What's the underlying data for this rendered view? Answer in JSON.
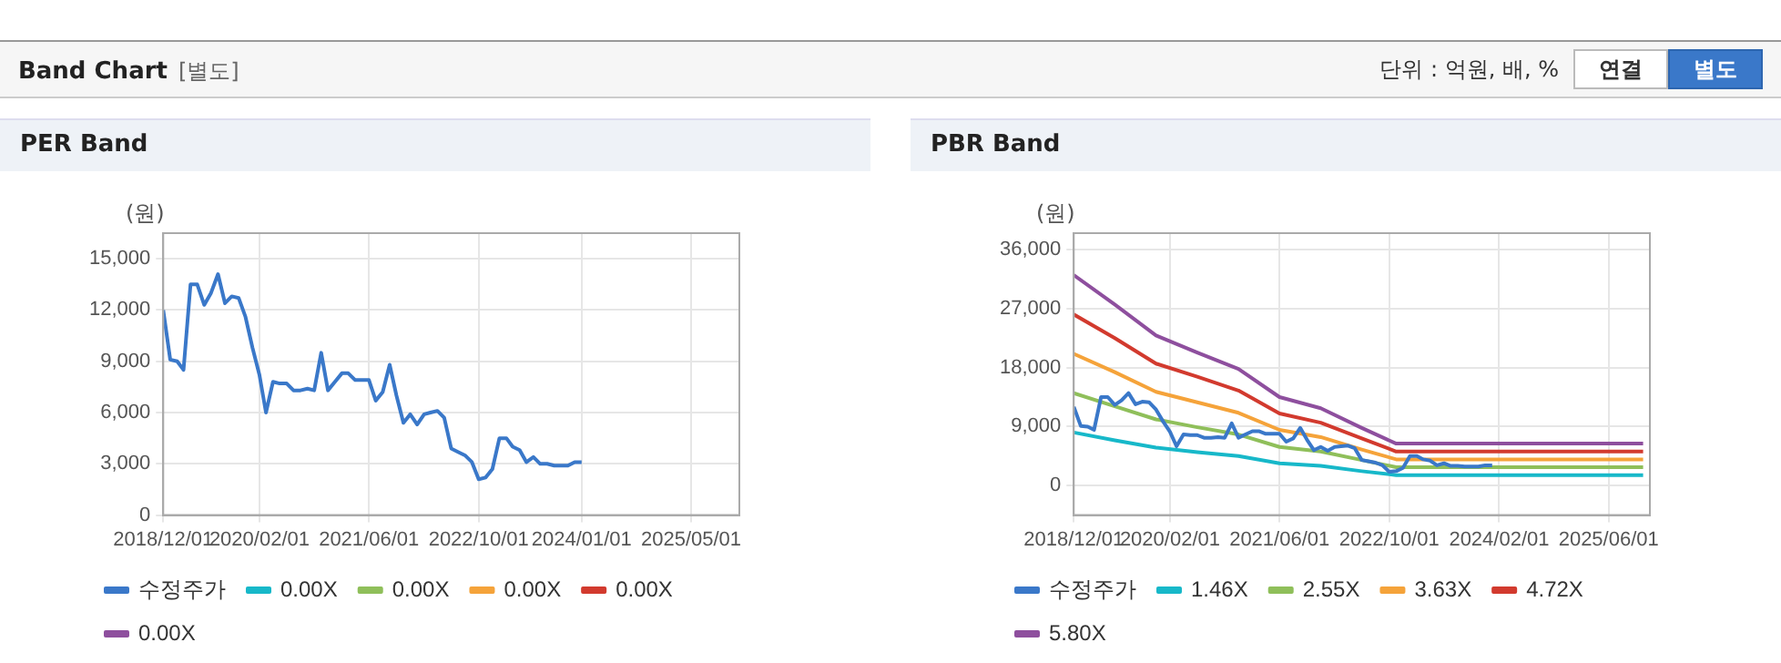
{
  "chart_data": [
    {
      "type": "other",
      "title": "Band Chart",
      "subtitle": "[별도]",
      "annotations": [
        "단위 : 억원, 배, %",
        "연결",
        "별도"
      ]
    },
    {
      "type": "line",
      "title": "PER Band",
      "ylabel": "(원)",
      "grid": true,
      "legend": "bottom",
      "marker": "none",
      "line_style": "solid",
      "x": [
        "2018-12",
        "2019-01",
        "2019-02",
        "2019-03",
        "2019-04",
        "2019-05",
        "2019-06",
        "2019-07",
        "2019-08",
        "2019-09",
        "2019-10",
        "2019-11",
        "2019-12",
        "2020-01",
        "2020-02",
        "2020-03",
        "2020-04",
        "2020-05",
        "2020-06",
        "2020-07",
        "2020-08",
        "2020-09",
        "2020-10",
        "2020-11",
        "2020-12",
        "2021-01",
        "2021-02",
        "2021-03",
        "2021-04",
        "2021-05",
        "2021-06",
        "2021-07",
        "2021-08",
        "2021-09",
        "2021-10",
        "2021-11",
        "2021-12",
        "2022-01",
        "2022-02",
        "2022-03",
        "2022-04",
        "2022-05",
        "2022-06",
        "2022-07",
        "2022-08",
        "2022-09",
        "2022-10",
        "2022-11",
        "2022-12",
        "2023-01",
        "2023-02",
        "2023-03",
        "2023-04",
        "2023-05",
        "2023-06",
        "2023-07",
        "2023-08",
        "2023-09",
        "2023-10",
        "2023-11",
        "2023-12",
        "2024-01"
      ],
      "xlim": [
        "2018-12-01",
        "2025-12-01"
      ],
      "xticks": [
        {
          "value": "2018-12-01",
          "label": "2018/12/01"
        },
        {
          "value": "2020-02-01",
          "label": "2020/02/01"
        },
        {
          "value": "2021-06-01",
          "label": "2021/06/01"
        },
        {
          "value": "2022-10-01",
          "label": "2022/10/01"
        },
        {
          "value": "2024-01-01",
          "label": "2024/01/01"
        },
        {
          "value": "2025-05-01",
          "label": "2025/05/01"
        }
      ],
      "ylim": [
        0,
        16500
      ],
      "yticks": [
        0,
        {
          "value": 3000,
          "label": "3,000"
        },
        {
          "value": 6000,
          "label": "6,000"
        },
        {
          "value": 9000,
          "label": "9,000"
        },
        {
          "value": 12000,
          "label": "12,000"
        },
        {
          "value": 15000,
          "label": "15,000"
        }
      ],
      "series": [
        {
          "name": "수정주가",
          "color": "#3a78c9",
          "values": [
            12000,
            9100,
            9000,
            8500,
            13500,
            13500,
            12300,
            13000,
            14100,
            12400,
            12800,
            12700,
            11600,
            9800,
            8200,
            6000,
            7800,
            7700,
            7700,
            7300,
            7300,
            7400,
            7300,
            9500,
            7300,
            7800,
            8300,
            8300,
            7900,
            7900,
            7900,
            6700,
            7200,
            8800,
            7000,
            5400,
            5900,
            5300,
            5900,
            6000,
            6100,
            5700,
            3900,
            3700,
            3500,
            3100,
            2100,
            2200,
            2700,
            4500,
            4500,
            4000,
            3800,
            3100,
            3400,
            3000,
            3000,
            2900,
            2900,
            2900,
            3100,
            3100
          ]
        },
        {
          "name": "0.00X",
          "color": "#17b8c9",
          "values": [
            null,
            null,
            null,
            null,
            null,
            null,
            null,
            null,
            null,
            null,
            null,
            null,
            null,
            null,
            null,
            null,
            null,
            null,
            null,
            null,
            null,
            null,
            null,
            null,
            null,
            null,
            null,
            null,
            null,
            null,
            null,
            null,
            null,
            null,
            null,
            null,
            null,
            null,
            null,
            null,
            null,
            null,
            null,
            null,
            null,
            null,
            null,
            null,
            null,
            null,
            null,
            null,
            null,
            null,
            null,
            null,
            null,
            null,
            null,
            null,
            null,
            null
          ]
        },
        {
          "name": "0.00X",
          "color": "#8fbf5a",
          "values": [
            null,
            null,
            null,
            null,
            null,
            null,
            null,
            null,
            null,
            null,
            null,
            null,
            null,
            null,
            null,
            null,
            null,
            null,
            null,
            null,
            null,
            null,
            null,
            null,
            null,
            null,
            null,
            null,
            null,
            null,
            null,
            null,
            null,
            null,
            null,
            null,
            null,
            null,
            null,
            null,
            null,
            null,
            null,
            null,
            null,
            null,
            null,
            null,
            null,
            null,
            null,
            null,
            null,
            null,
            null,
            null,
            null,
            null,
            null,
            null,
            null,
            null
          ]
        },
        {
          "name": "0.00X",
          "color": "#f5a33a",
          "values": [
            null,
            null,
            null,
            null,
            null,
            null,
            null,
            null,
            null,
            null,
            null,
            null,
            null,
            null,
            null,
            null,
            null,
            null,
            null,
            null,
            null,
            null,
            null,
            null,
            null,
            null,
            null,
            null,
            null,
            null,
            null,
            null,
            null,
            null,
            null,
            null,
            null,
            null,
            null,
            null,
            null,
            null,
            null,
            null,
            null,
            null,
            null,
            null,
            null,
            null,
            null,
            null,
            null,
            null,
            null,
            null,
            null,
            null,
            null,
            null,
            null,
            null
          ]
        },
        {
          "name": "0.00X",
          "color": "#d23a2e",
          "values": [
            null,
            null,
            null,
            null,
            null,
            null,
            null,
            null,
            null,
            null,
            null,
            null,
            null,
            null,
            null,
            null,
            null,
            null,
            null,
            null,
            null,
            null,
            null,
            null,
            null,
            null,
            null,
            null,
            null,
            null,
            null,
            null,
            null,
            null,
            null,
            null,
            null,
            null,
            null,
            null,
            null,
            null,
            null,
            null,
            null,
            null,
            null,
            null,
            null,
            null,
            null,
            null,
            null,
            null,
            null,
            null,
            null,
            null,
            null,
            null,
            null,
            null
          ]
        },
        {
          "name": "0.00X",
          "color": "#8e4f9e",
          "values": [
            null,
            null,
            null,
            null,
            null,
            null,
            null,
            null,
            null,
            null,
            null,
            null,
            null,
            null,
            null,
            null,
            null,
            null,
            null,
            null,
            null,
            null,
            null,
            null,
            null,
            null,
            null,
            null,
            null,
            null,
            null,
            null,
            null,
            null,
            null,
            null,
            null,
            null,
            null,
            null,
            null,
            null,
            null,
            null,
            null,
            null,
            null,
            null,
            null,
            null,
            null,
            null,
            null,
            null,
            null,
            null,
            null,
            null,
            null,
            null,
            null,
            null
          ]
        }
      ]
    },
    {
      "type": "line",
      "title": "PBR Band",
      "ylabel": "(원)",
      "grid": true,
      "legend": "bottom",
      "marker": "none",
      "line_style": "solid",
      "x": [
        "2018-12",
        "2019-01",
        "2019-02",
        "2019-03",
        "2019-04",
        "2019-05",
        "2019-06",
        "2019-07",
        "2019-08",
        "2019-09",
        "2019-10",
        "2019-11",
        "2019-12",
        "2020-01",
        "2020-02",
        "2020-03",
        "2020-04",
        "2020-05",
        "2020-06",
        "2020-07",
        "2020-08",
        "2020-09",
        "2020-10",
        "2020-11",
        "2020-12",
        "2021-01",
        "2021-02",
        "2021-03",
        "2021-04",
        "2021-05",
        "2021-06",
        "2021-07",
        "2021-08",
        "2021-09",
        "2021-10",
        "2021-11",
        "2021-12",
        "2022-01",
        "2022-02",
        "2022-03",
        "2022-04",
        "2022-05",
        "2022-06",
        "2022-07",
        "2022-08",
        "2022-09",
        "2022-10",
        "2022-11",
        "2022-12",
        "2023-01",
        "2023-02",
        "2023-03",
        "2023-04",
        "2023-05",
        "2023-06",
        "2023-07",
        "2023-08",
        "2023-09",
        "2023-10",
        "2023-11",
        "2023-12",
        "2024-01"
      ],
      "xlim": [
        "2018-12-01",
        "2025-12-01"
      ],
      "xticks": [
        {
          "value": "2018-12-01",
          "label": "2018/12/01"
        },
        {
          "value": "2020-02-01",
          "label": "2020/02/01"
        },
        {
          "value": "2021-06-01",
          "label": "2021/06/01"
        },
        {
          "value": "2022-10-01",
          "label": "2022/10/01"
        },
        {
          "value": "2024-02-01",
          "label": "2024/02/01"
        },
        {
          "value": "2025-06-01",
          "label": "2025/06/01"
        }
      ],
      "ylim": [
        -4500,
        38500
      ],
      "yticks": [
        0,
        {
          "value": 9000,
          "label": "9,000"
        },
        {
          "value": 18000,
          "label": "18,000"
        },
        {
          "value": 27000,
          "label": "27,000"
        },
        {
          "value": 36000,
          "label": "36,000"
        }
      ],
      "series": [
        {
          "name": "수정주가",
          "color": "#3a78c9",
          "values": [
            12000,
            9100,
            9000,
            8500,
            13500,
            13500,
            12300,
            13000,
            14100,
            12400,
            12800,
            12700,
            11600,
            9800,
            8200,
            6000,
            7800,
            7700,
            7700,
            7300,
            7300,
            7400,
            7300,
            9500,
            7300,
            7800,
            8300,
            8300,
            7900,
            7900,
            7900,
            6700,
            7200,
            8800,
            7000,
            5400,
            5900,
            5300,
            5900,
            6000,
            6100,
            5700,
            3900,
            3700,
            3500,
            3100,
            2100,
            2200,
            2700,
            4500,
            4500,
            4000,
            3800,
            3100,
            3400,
            3000,
            3000,
            2900,
            2900,
            2900,
            3100,
            3100
          ]
        },
        {
          "name": "1.46X",
          "color": "#17b8c9",
          "x": [
            "2018-12",
            "2019-06",
            "2019-12",
            "2020-06",
            "2020-12",
            "2021-06",
            "2021-12",
            "2022-06",
            "2022-11",
            "2025-11"
          ],
          "values": [
            8100,
            6900,
            5800,
            5100,
            4500,
            3400,
            3000,
            2200,
            1600,
            1600
          ]
        },
        {
          "name": "2.55X",
          "color": "#8fbf5a",
          "x": [
            "2018-12",
            "2019-06",
            "2019-12",
            "2020-06",
            "2020-12",
            "2021-06",
            "2021-12",
            "2022-06",
            "2022-11",
            "2025-11"
          ],
          "values": [
            14100,
            12100,
            10100,
            8900,
            7800,
            5900,
            5200,
            3900,
            2800,
            2800
          ]
        },
        {
          "name": "3.63X",
          "color": "#f5a33a",
          "x": [
            "2018-12",
            "2019-06",
            "2019-12",
            "2020-06",
            "2020-12",
            "2021-06",
            "2021-12",
            "2022-06",
            "2022-11",
            "2025-11"
          ],
          "values": [
            20100,
            17300,
            14300,
            12700,
            11100,
            8500,
            7400,
            5500,
            4000,
            4000
          ]
        },
        {
          "name": "4.72X",
          "color": "#d23a2e",
          "x": [
            "2018-12",
            "2019-06",
            "2019-12",
            "2020-06",
            "2020-12",
            "2021-06",
            "2021-12",
            "2022-06",
            "2022-11",
            "2025-11"
          ],
          "values": [
            26100,
            22500,
            18600,
            16600,
            14500,
            11000,
            9600,
            7200,
            5200,
            5200
          ]
        },
        {
          "name": "5.80X",
          "color": "#8e4f9e",
          "x": [
            "2018-12",
            "2019-06",
            "2019-12",
            "2020-06",
            "2020-12",
            "2021-06",
            "2021-12",
            "2022-06",
            "2022-11",
            "2025-11"
          ],
          "values": [
            32100,
            27600,
            22900,
            20300,
            17800,
            13500,
            11800,
            8800,
            6400,
            6400
          ]
        }
      ]
    }
  ]
}
